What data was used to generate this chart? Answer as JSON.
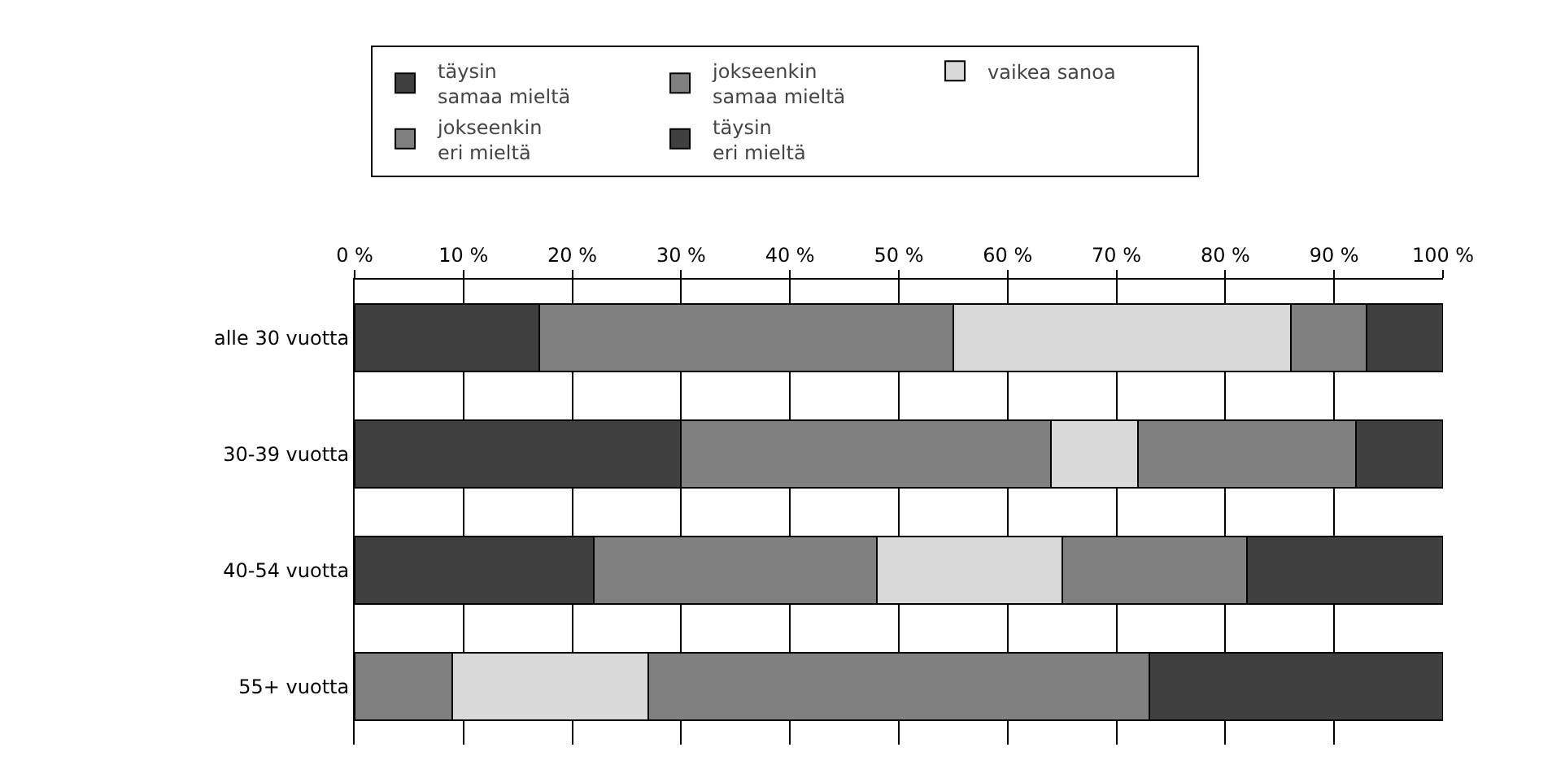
{
  "chart_data": {
    "type": "bar",
    "orientation": "horizontal",
    "stacked": true,
    "categories": [
      "alle 30 vuotta",
      "30-39 vuotta",
      "40-54 vuotta",
      "55+ vuotta"
    ],
    "series": [
      {
        "name": "täysin\nsamaa mieltä",
        "color": "#404040",
        "values": [
          17,
          30,
          22,
          0
        ]
      },
      {
        "name": "jokseenkin\nsamaa mieltä",
        "color": "#808080",
        "values": [
          38,
          34,
          26,
          9
        ]
      },
      {
        "name": "vaikea sanoa",
        "color": "#d9d9d9",
        "values": [
          31,
          8,
          17,
          18
        ]
      },
      {
        "name": "jokseenkin\neri mieltä",
        "color": "#808080",
        "values": [
          7,
          20,
          17,
          46
        ]
      },
      {
        "name": "täysin\neri mieltä",
        "color": "#404040",
        "values": [
          7,
          8,
          18,
          27
        ]
      }
    ],
    "xlim": [
      0,
      100
    ],
    "xticks": [
      {
        "value": 0,
        "label": "0 %"
      },
      {
        "value": 10,
        "label": "10 %"
      },
      {
        "value": 20,
        "label": "20 %"
      },
      {
        "value": 30,
        "label": "30 %"
      },
      {
        "value": 40,
        "label": "40 %"
      },
      {
        "value": 50,
        "label": "50 %"
      },
      {
        "value": 60,
        "label": "60 %"
      },
      {
        "value": 70,
        "label": "70 %"
      },
      {
        "value": 80,
        "label": "80 %"
      },
      {
        "value": 90,
        "label": "90 %"
      },
      {
        "value": 100,
        "label": "100 %"
      }
    ],
    "grid": "x",
    "legend": "top"
  }
}
